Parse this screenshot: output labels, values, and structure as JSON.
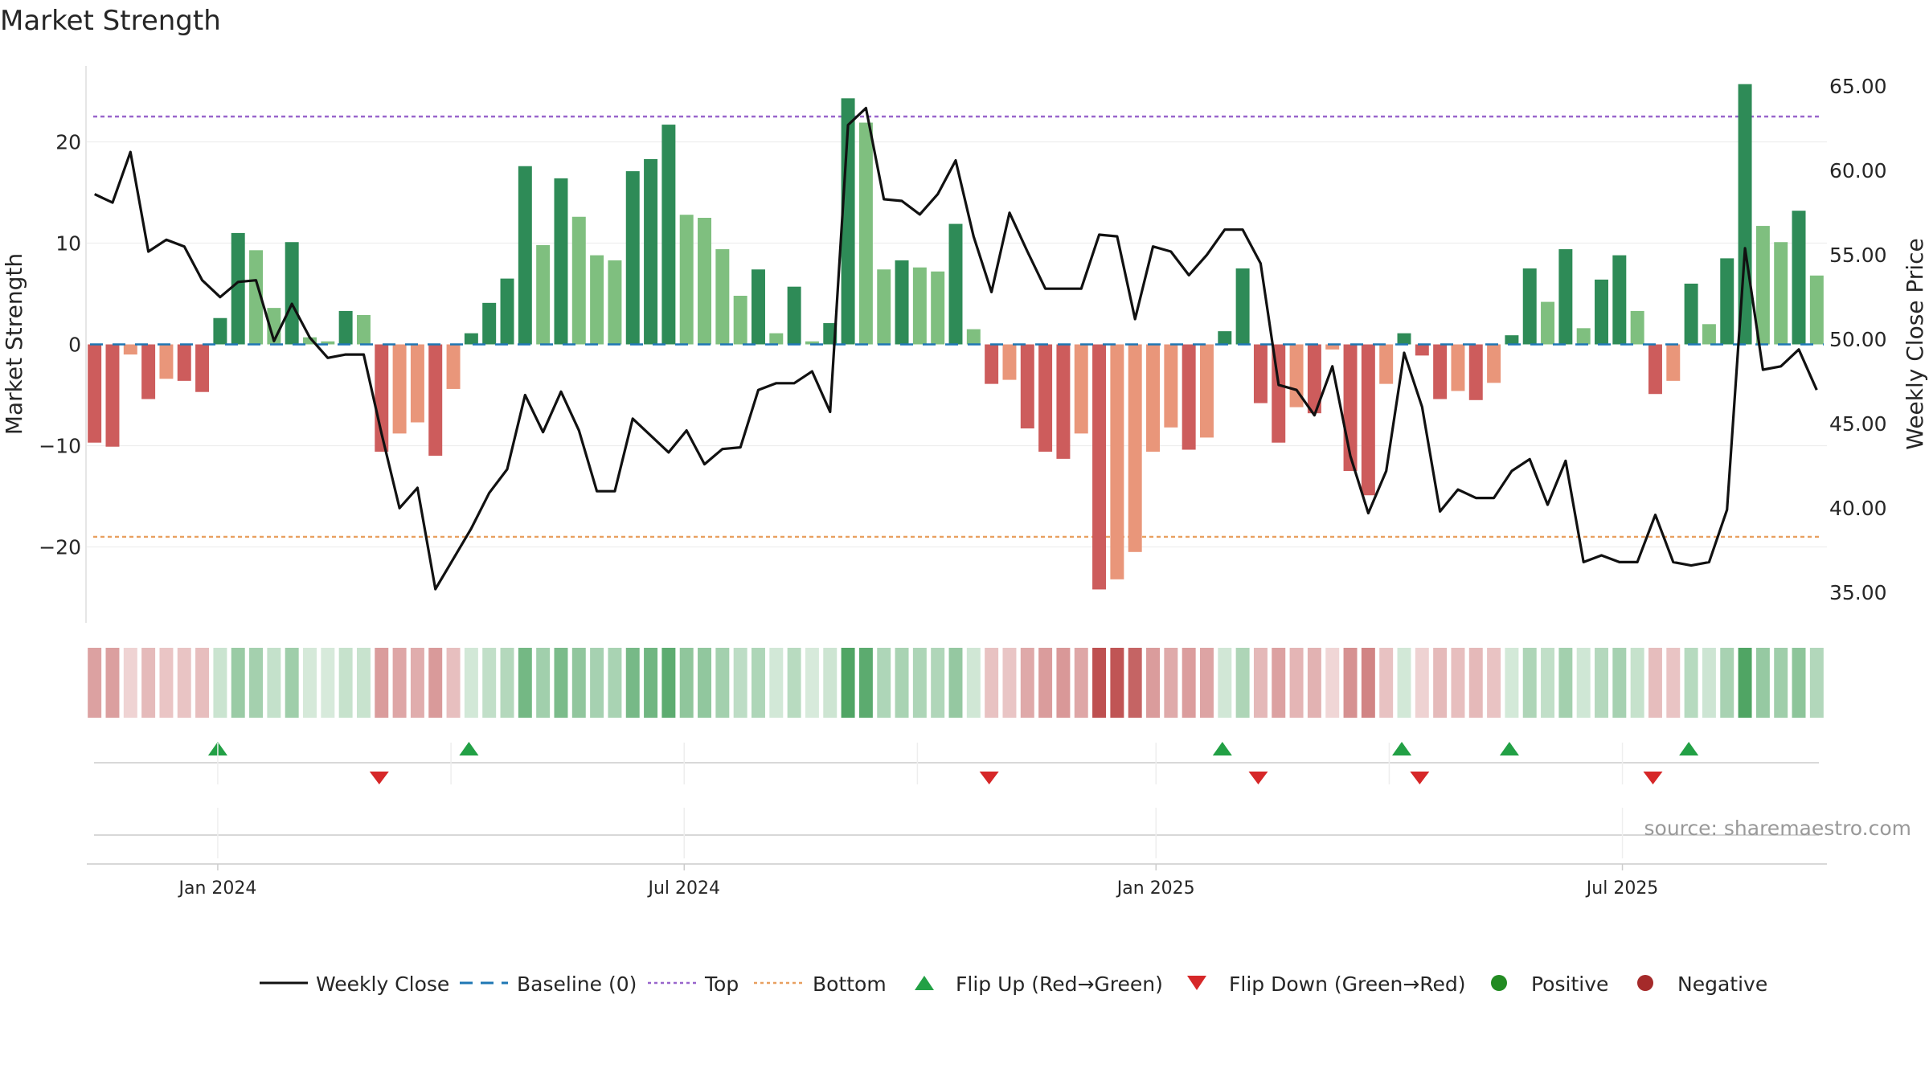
{
  "chart_data": {
    "type": "bar+line",
    "title": "Market Strength",
    "ylabel_left": "Market Strength",
    "ylabel_right": "Weekly Close Price",
    "ylim_left": [
      -27.5,
      27.5
    ],
    "ylim_right": [
      33.2,
      66.2
    ],
    "yticks_left": [
      20,
      10,
      0,
      -10,
      -20
    ],
    "ytick_labels_left": [
      "20",
      "10",
      "0",
      "−10",
      "−20"
    ],
    "yticks_right": [
      65,
      60,
      55,
      50,
      45,
      40,
      35
    ],
    "ytick_labels_right": [
      "65.00",
      "60.00",
      "55.00",
      "50.00",
      "45.00",
      "40.00",
      "35.00"
    ],
    "top_threshold": 22.5,
    "bottom_threshold": -19,
    "baseline": 0,
    "x_start_week": -7.3,
    "x_end_week": 89.7,
    "x_tick_weeks": [
      0,
      26,
      52.3,
      78.3
    ],
    "x_tick_labels": [
      "Jan 2024",
      "Jul 2024",
      "Jan 2025",
      "Jul 2025"
    ],
    "strength": [
      -9.7,
      -10.1,
      -1,
      -5.4,
      -3.4,
      -3.6,
      -4.7,
      2.6,
      11,
      9.3,
      3.6,
      10.1,
      0.7,
      0.3,
      3.3,
      2.9,
      -10.6,
      -8.8,
      -7.7,
      -11,
      -4.4,
      1.1,
      4.1,
      6.5,
      17.6,
      9.8,
      16.4,
      12.6,
      8.8,
      8.3,
      17.1,
      18.3,
      21.7,
      12.8,
      12.5,
      9.4,
      4.8,
      7.4,
      1.1,
      5.7,
      0.3,
      2.1,
      24.3,
      21.9,
      7.4,
      8.3,
      7.6,
      7.2,
      11.9,
      1.5,
      -3.9,
      -3.5,
      -8.3,
      -10.6,
      -11.3,
      -8.8,
      -24.2,
      -23.2,
      -20.5,
      -10.6,
      -8.2,
      -10.4,
      -9.2,
      1.3,
      7.5,
      -5.8,
      -9.7,
      -6.2,
      -6.8,
      -0.5,
      -12.5,
      -14.9,
      -3.9,
      1.1,
      -1.1,
      -5.4,
      -4.6,
      -5.5,
      -3.8,
      0.9,
      7.5,
      4.2,
      9.4,
      1.6,
      6.4,
      8.8,
      3.3,
      -4.9,
      -3.6,
      6,
      2,
      8.5,
      25.7,
      11.7,
      10.1,
      13.2,
      6.8
    ],
    "close": [
      58.6,
      58.1,
      61.1,
      55.2,
      55.9,
      55.5,
      53.5,
      52.5,
      53.4,
      53.5,
      49.9,
      52.1,
      50.1,
      48.9,
      49.1,
      49.1,
      44.4,
      40,
      41.2,
      35.2,
      37,
      38.8,
      40.9,
      42.3,
      46.7,
      44.5,
      46.9,
      44.6,
      41,
      41,
      45.3,
      44.3,
      43.3,
      44.6,
      42.6,
      43.5,
      43.6,
      47,
      47.4,
      47.4,
      48.1,
      45.7,
      62.7,
      63.7,
      58.3,
      58.2,
      57.4,
      58.6,
      60.6,
      56.1,
      52.8,
      57.5,
      55.2,
      53,
      53,
      53,
      56.2,
      56.1,
      51.2,
      55.5,
      55.2,
      53.8,
      55,
      56.5,
      56.5,
      54.5,
      47.3,
      47,
      45.5,
      48.4,
      43.1,
      39.7,
      42.2,
      49.2,
      46,
      39.8,
      41.1,
      40.6,
      40.6,
      42.2,
      42.9,
      40.2,
      42.8,
      36.8,
      37.2,
      36.8,
      36.8,
      39.6,
      36.8,
      36.6,
      36.8,
      39.9,
      55.4,
      48.2,
      48.4,
      49.4,
      47
    ]
  },
  "rating_strip_label": "",
  "flip_up_weeks": [
    0,
    14,
    56,
    66,
    72,
    82
  ],
  "flip_down_weeks": [
    9,
    43,
    58,
    67,
    80
  ],
  "source_text": "source: sharemaestro.com",
  "legend": {
    "weekly_close": "Weekly Close",
    "baseline": "Baseline (0)",
    "top": "Top",
    "bottom": "Bottom",
    "flip_up": "Flip Up (Red→Green)",
    "flip_down": "Flip Down (Green→Red)",
    "positive": "Positive",
    "negative": "Negative"
  },
  "colors": {
    "strong_green": "#2e8b57",
    "light_green": "#7fbf7f",
    "strong_red": "#cd5c5c",
    "light_red": "#e9967a",
    "top_line": "#9966cc",
    "bottom_line": "#e8a060",
    "baseline": "#1f77b4",
    "flip_up": "#22a045",
    "flip_down": "#d62728",
    "positive": "#228b22",
    "negative": "#a52a2a"
  }
}
